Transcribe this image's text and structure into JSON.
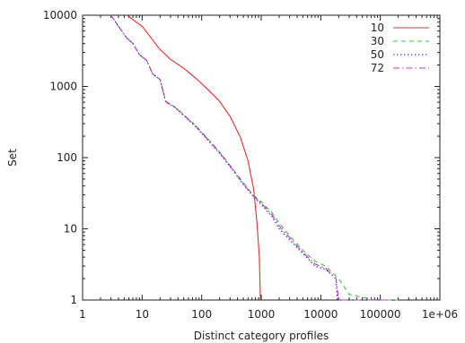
{
  "chart_data": {
    "type": "line",
    "title": "",
    "xlabel": "Distinct category profiles",
    "ylabel": "Set",
    "xscale": "log",
    "yscale": "log",
    "xlim": [
      1,
      1000000
    ],
    "ylim": [
      1,
      10000
    ],
    "grid": false,
    "legend_position": "top-right",
    "x_ticks": [
      {
        "value": 1,
        "label": "1"
      },
      {
        "value": 10,
        "label": "10"
      },
      {
        "value": 100,
        "label": "100"
      },
      {
        "value": 1000,
        "label": "1000"
      },
      {
        "value": 10000,
        "label": "10000"
      },
      {
        "value": 100000,
        "label": "100000"
      },
      {
        "value": 1000000,
        "label": "1e+06"
      }
    ],
    "y_ticks": [
      {
        "value": 1,
        "label": "1"
      },
      {
        "value": 10,
        "label": "10"
      },
      {
        "value": 100,
        "label": "100"
      },
      {
        "value": 1000,
        "label": "1000"
      },
      {
        "value": 10000,
        "label": "10000"
      }
    ],
    "series": [
      {
        "name": "10",
        "color": "#e0302e",
        "dash": "solid",
        "points": [
          [
            5.6,
            10000
          ],
          [
            8,
            8000
          ],
          [
            10,
            7000
          ],
          [
            15,
            4500
          ],
          [
            20,
            3300
          ],
          [
            30,
            2400
          ],
          [
            50,
            1800
          ],
          [
            80,
            1300
          ],
          [
            120,
            950
          ],
          [
            200,
            620
          ],
          [
            300,
            380
          ],
          [
            450,
            190
          ],
          [
            600,
            90
          ],
          [
            750,
            35
          ],
          [
            850,
            12
          ],
          [
            930,
            4
          ],
          [
            970,
            1
          ]
        ]
      },
      {
        "name": "30",
        "color": "#3fbf3f",
        "dash": "dashed",
        "points": [
          [
            3,
            10000
          ],
          [
            4,
            7000
          ],
          [
            5.5,
            4800
          ],
          [
            7,
            4000
          ],
          [
            9,
            2800
          ],
          [
            12,
            2300
          ],
          [
            15,
            1500
          ],
          [
            20,
            1250
          ],
          [
            25,
            620
          ],
          [
            35,
            520
          ],
          [
            50,
            400
          ],
          [
            80,
            280
          ],
          [
            120,
            195
          ],
          [
            200,
            120
          ],
          [
            300,
            78
          ],
          [
            500,
            45
          ],
          [
            700,
            31
          ],
          [
            1000,
            24
          ],
          [
            1500,
            17
          ],
          [
            2000,
            12
          ],
          [
            3000,
            8
          ],
          [
            5000,
            5
          ],
          [
            8000,
            3.5
          ],
          [
            12000,
            3
          ],
          [
            20000,
            2
          ],
          [
            30000,
            1.2
          ],
          [
            80000,
            1
          ],
          [
            200000,
            1
          ]
        ]
      },
      {
        "name": "50",
        "color": "#1f1fd0",
        "dash": "dotted",
        "points": [
          [
            3,
            10000
          ],
          [
            4,
            7000
          ],
          [
            5.5,
            4800
          ],
          [
            7,
            4000
          ],
          [
            9,
            2800
          ],
          [
            12,
            2300
          ],
          [
            15,
            1500
          ],
          [
            20,
            1250
          ],
          [
            25,
            600
          ],
          [
            35,
            510
          ],
          [
            50,
            390
          ],
          [
            80,
            270
          ],
          [
            120,
            185
          ],
          [
            200,
            115
          ],
          [
            300,
            75
          ],
          [
            500,
            42
          ],
          [
            700,
            30
          ],
          [
            1000,
            22
          ],
          [
            1500,
            15
          ],
          [
            2000,
            10
          ],
          [
            3000,
            7
          ],
          [
            5000,
            4.5
          ],
          [
            8000,
            3
          ],
          [
            12000,
            2.7
          ],
          [
            18000,
            2
          ],
          [
            19000,
            1
          ],
          [
            100000,
            1
          ]
        ]
      },
      {
        "name": "72",
        "color": "#cc33cc",
        "dash": "dashdot",
        "points": [
          [
            3,
            10000
          ],
          [
            4,
            7000
          ],
          [
            5.5,
            4800
          ],
          [
            7,
            4000
          ],
          [
            9,
            2800
          ],
          [
            12,
            2300
          ],
          [
            15,
            1500
          ],
          [
            20,
            1250
          ],
          [
            25,
            610
          ],
          [
            35,
            515
          ],
          [
            50,
            395
          ],
          [
            80,
            275
          ],
          [
            120,
            190
          ],
          [
            200,
            118
          ],
          [
            300,
            76
          ],
          [
            500,
            43
          ],
          [
            700,
            30
          ],
          [
            1000,
            23
          ],
          [
            1500,
            16
          ],
          [
            2000,
            11
          ],
          [
            3000,
            7.5
          ],
          [
            5000,
            4.7
          ],
          [
            8000,
            3.2
          ],
          [
            12000,
            2.8
          ],
          [
            18000,
            2
          ],
          [
            20000,
            1
          ],
          [
            140000,
            1
          ]
        ]
      }
    ]
  }
}
